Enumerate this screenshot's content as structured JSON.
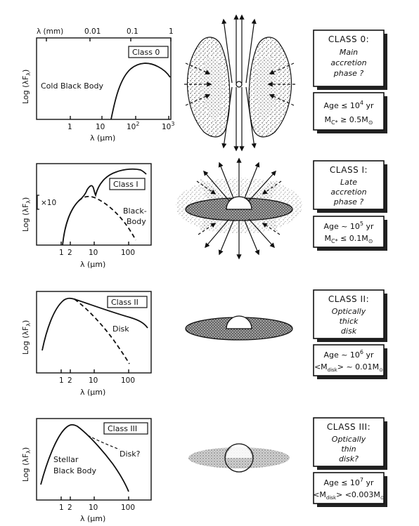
{
  "panels": [
    {
      "class_tag": "Class 0",
      "curve_label": "Cold Black Body",
      "ylabel": "Log (λF",
      "ylabel_sub": "λ",
      "ylabel_end": ")",
      "xlabel": "λ (μm)",
      "top_axis_label": "λ (mm)",
      "top_ticks": [
        "0.01",
        "0.1",
        "1"
      ],
      "x_ticks": [
        "1",
        "10",
        "10",
        "10"
      ],
      "x_tick_sups": [
        "",
        "",
        "2",
        "3"
      ],
      "box_title": "CLASS 0:",
      "box_desc": [
        "Main",
        "accretion",
        "phase ?"
      ],
      "age_text": "Age ≤ 10",
      "age_sup": "4",
      "age_unit": " yr",
      "mass_text": "M",
      "mass_sub": "C*",
      "mass_rel": " ≥ 0.5M",
      "mass_sub2": "⊙"
    },
    {
      "class_tag": "Class I",
      "curve_label_1": "Black-",
      "curve_label_2": "Body",
      "scale_note": "×10",
      "ylabel": "Log (λF",
      "ylabel_sub": "λ",
      "ylabel_end": ")",
      "xlabel": "λ (μm)",
      "x_ticks": [
        "1",
        "2",
        "10",
        "100"
      ],
      "box_title": "CLASS I:",
      "box_desc": [
        "Late",
        "accretion",
        "phase ?"
      ],
      "age_text": "Age ~ 10",
      "age_sup": "5",
      "age_unit": " yr",
      "mass_text": "M",
      "mass_sub": "C*",
      "mass_rel": " ≤ 0.1M",
      "mass_sub2": "⊙"
    },
    {
      "class_tag": "Class II",
      "curve_label": "Disk",
      "ylabel": "Log (λF",
      "ylabel_sub": "λ",
      "ylabel_end": ")",
      "xlabel": "λ (μm)",
      "x_ticks": [
        "1",
        "2",
        "10",
        "100"
      ],
      "box_title": "CLASS II:",
      "box_desc": [
        "Optically",
        "thick",
        "disk"
      ],
      "age_text": "Age ~ 10",
      "age_sup": "6",
      "age_unit": " yr",
      "mass_text": "<M",
      "mass_sub": "disk",
      "mass_rel": "> ~ 0.01M",
      "mass_sub2": "⊙"
    },
    {
      "class_tag": "Class III",
      "curve_label": "Disk?",
      "curve_label_2a": "Stellar",
      "curve_label_2b": "Black Body",
      "ylabel": "Log (λF",
      "ylabel_sub": "λ",
      "ylabel_end": ")",
      "xlabel": "λ (μm)",
      "x_ticks": [
        "1",
        "2",
        "10",
        "100"
      ],
      "box_title": "CLASS III:",
      "box_desc": [
        "Optically",
        "thin",
        "disk?"
      ],
      "age_text": "Age ≤ 10",
      "age_sup": "7",
      "age_unit": " yr",
      "mass_text": "<M",
      "mass_sub": "disk",
      "mass_rel": "> <0.003M",
      "mass_sub2": "⊙"
    }
  ],
  "colors": {
    "ink": "#111111",
    "shadow": "#222222",
    "stipple": "#555555",
    "paper": "#ffffff"
  }
}
